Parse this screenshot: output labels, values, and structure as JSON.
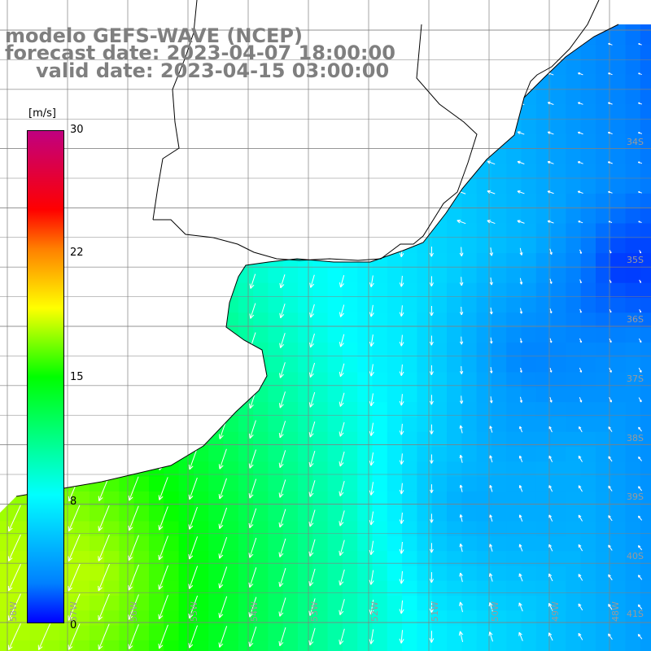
{
  "title": {
    "line1": "modelo GEFS-WAVE (NCEP)",
    "line2": "forecast date: 2023-04-07 18:00:00",
    "line3": "valid date: 2023-04-15 03:00:00"
  },
  "colorbar": {
    "units": "[m/s]",
    "ticks": [
      "30",
      "22",
      "15",
      "8",
      "0"
    ],
    "colors": [
      "#0000ff",
      "#0080ff",
      "#00ffff",
      "#00ff00",
      "#ffff00",
      "#ff8000",
      "#ff0000",
      "#c00080"
    ]
  },
  "lat_labels": [
    "34S",
    "35S",
    "36S",
    "37S",
    "38S",
    "39S",
    "40S",
    "41S"
  ],
  "lon_labels": [
    "58W",
    "57W",
    "56W",
    "55W",
    "54W",
    "53W",
    "52W",
    "51W",
    "50W",
    "49W",
    "48W"
  ],
  "map": {
    "land_color": "#ffffff",
    "coast_color": "#000000",
    "grid_color": "#808080",
    "arrow_color": "#ffffff"
  }
}
